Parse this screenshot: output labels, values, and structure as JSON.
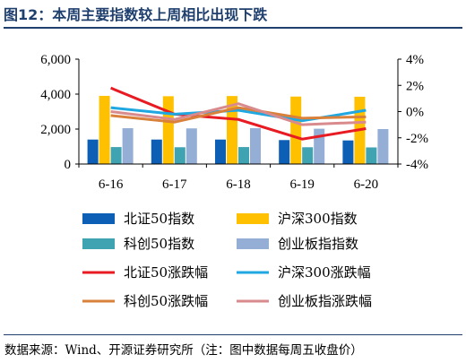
{
  "title": "图12：本周主要指数较上周相比出现下跌",
  "source": "数据来源：Wind、开源证券研究所（注：图中数据每周五收盘价）",
  "chart_data": {
    "type": "bar+line",
    "categories": [
      "6-16",
      "6-17",
      "6-18",
      "6-19",
      "6-20"
    ],
    "left_axis": {
      "range": [
        0,
        6000
      ],
      "ticks": [
        "0",
        "2,000",
        "4,000",
        "6,000"
      ],
      "tick_values": [
        0,
        2000,
        4000,
        6000
      ]
    },
    "right_axis": {
      "range": [
        -4,
        4
      ],
      "ticks": [
        "-4%",
        "-2%",
        "0%",
        "2%",
        "4%"
      ],
      "tick_values": [
        -4,
        -2,
        0,
        2,
        4
      ]
    },
    "grid": false,
    "legend_position": "bottom",
    "bar_series": [
      {
        "name": "北证50指数",
        "color": "#0c5fb4",
        "values": [
          1400,
          1400,
          1400,
          1370,
          1350
        ]
      },
      {
        "name": "沪深300指数",
        "color": "#ffc000",
        "values": [
          3900,
          3880,
          3890,
          3860,
          3850
        ]
      },
      {
        "name": "科创50指数",
        "color": "#3fa3b2",
        "values": [
          970,
          960,
          970,
          960,
          950
        ]
      },
      {
        "name": "创业板指指数",
        "color": "#94aed6",
        "values": [
          2050,
          2040,
          2050,
          2020,
          2000
        ]
      }
    ],
    "line_series": [
      {
        "name": "北证50涨跌幅",
        "color": "#e81b23",
        "values": [
          1.8,
          -0.2,
          -0.6,
          -2.1,
          -1.3
        ]
      },
      {
        "name": "沪深300涨跌幅",
        "color": "#1ea7e1",
        "values": [
          0.3,
          -0.2,
          0.1,
          -0.7,
          0.1
        ]
      },
      {
        "name": "科创50涨跌幅",
        "color": "#d9803a",
        "values": [
          -0.3,
          -0.8,
          0.3,
          -0.5,
          -0.4
        ]
      },
      {
        "name": "创业板指涨跌幅",
        "color": "#d88a8c",
        "values": [
          0.0,
          -0.6,
          0.6,
          -1.0,
          -0.8
        ]
      }
    ]
  }
}
